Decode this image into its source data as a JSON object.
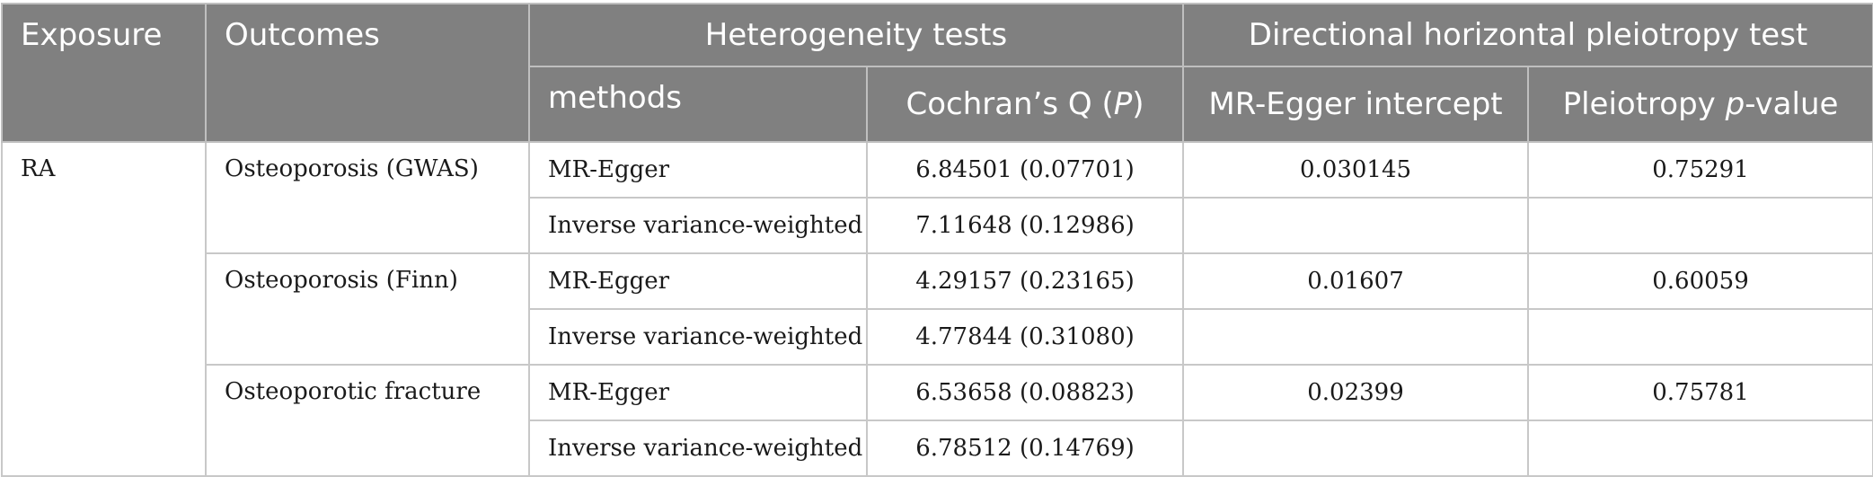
{
  "header": {
    "exposure": "Exposure",
    "outcomes": "Outcomes",
    "heterogeneity": "Heterogeneity tests",
    "pleiotropy": "Directional horizontal pleiotropy test",
    "methods": "methods",
    "cochran_prefix": "Cochran’s Q (",
    "cochran_p": "P",
    "cochran_suffix": ")",
    "egger_intercept": "MR-Egger intercept",
    "pleio_prefix": "Pleiotropy ",
    "pleio_p": "p",
    "pleio_suffix": "-value"
  },
  "exposure": "RA",
  "groups": [
    {
      "outcome": "Osteoporosis (GWAS)",
      "rows": [
        {
          "method": "MR-Egger",
          "cochran": "6.84501 (0.07701)",
          "intercept": "0.030145",
          "pvalue": "0.75291"
        },
        {
          "method": "Inverse variance-weighted",
          "cochran": "7.11648 (0.12986)",
          "intercept": "",
          "pvalue": ""
        }
      ]
    },
    {
      "outcome": "Osteoporosis (Finn)",
      "rows": [
        {
          "method": "MR-Egger",
          "cochran": "4.29157 (0.23165)",
          "intercept": "0.01607",
          "pvalue": "0.60059"
        },
        {
          "method": "Inverse variance-weighted",
          "cochran": "4.77844 (0.31080)",
          "intercept": "",
          "pvalue": ""
        }
      ]
    },
    {
      "outcome": "Osteoporotic fracture",
      "rows": [
        {
          "method": "MR-Egger",
          "cochran": "6.53658 (0.08823)",
          "intercept": "0.02399",
          "pvalue": "0.75781"
        },
        {
          "method": "Inverse variance-weighted",
          "cochran": "6.78512 (0.14769)",
          "intercept": "",
          "pvalue": ""
        }
      ]
    }
  ]
}
